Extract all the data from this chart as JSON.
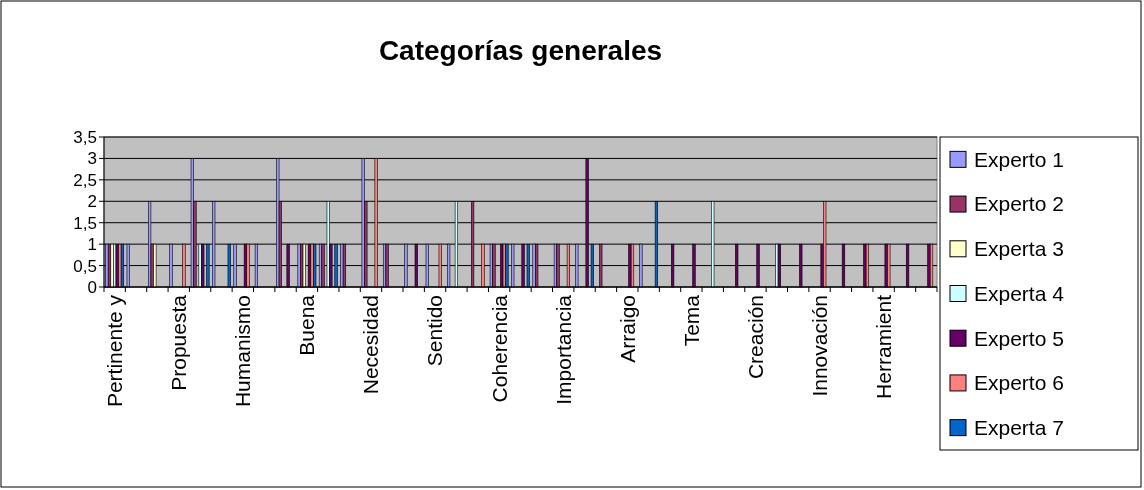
{
  "chart_data": {
    "type": "bar",
    "title": "Categorías generales",
    "categories": [
      "Pertinente y",
      null,
      null,
      "Propuesta",
      null,
      null,
      "Humanismo",
      null,
      null,
      "Buena",
      null,
      null,
      "Necesidad",
      null,
      null,
      "Sentido",
      null,
      null,
      "Coherencia",
      null,
      null,
      "Importancia",
      null,
      null,
      "Arraigo",
      null,
      null,
      "Tema",
      null,
      null,
      "Creación",
      null,
      null,
      "Innovación",
      null,
      null,
      "Herramient",
      null,
      null
    ],
    "series": [
      {
        "name": "Experto 1",
        "color": "#9999ff",
        "values": [
          1,
          1,
          2,
          1,
          3,
          2,
          1,
          1,
          3,
          1,
          1,
          1,
          3,
          1,
          1,
          1,
          1,
          0,
          1,
          1,
          1,
          1,
          1,
          0,
          0,
          1,
          0,
          0,
          0,
          0,
          0,
          0,
          0,
          0,
          0,
          0,
          0,
          0,
          0
        ]
      },
      {
        "name": "Experto 2",
        "color": "#993366",
        "values": [
          1,
          0,
          1,
          0,
          2,
          0,
          0,
          0,
          2,
          1,
          1,
          1,
          2,
          1,
          0,
          0,
          0,
          2,
          1,
          0,
          1,
          1,
          0,
          1,
          0,
          0,
          0,
          0,
          0,
          0,
          0,
          0,
          0,
          0,
          0,
          0,
          0,
          0,
          0
        ]
      },
      {
        "name": "Experta 3",
        "color": "#ffffcc",
        "values": [
          1,
          0,
          1,
          0,
          0,
          0,
          0,
          0,
          0,
          1,
          0,
          0,
          0,
          0,
          0,
          0,
          0,
          0,
          0,
          0,
          0,
          0,
          0,
          0,
          0,
          0,
          0,
          0,
          0,
          0,
          0,
          0,
          0,
          0,
          0,
          0,
          0,
          0,
          0
        ]
      },
      {
        "name": "Experta 4",
        "color": "#ccffff",
        "values": [
          1,
          0,
          0,
          0,
          1,
          0,
          0,
          0,
          0,
          0,
          2,
          0,
          0,
          0,
          0,
          0,
          2,
          0,
          0,
          0,
          0,
          0,
          0,
          0,
          0,
          0,
          0,
          0,
          2,
          0,
          0,
          1,
          0,
          0,
          0,
          0,
          0,
          0,
          0
        ]
      },
      {
        "name": "Experto 5",
        "color": "#660066",
        "values": [
          1,
          0,
          0,
          0,
          1,
          0,
          1,
          0,
          1,
          1,
          1,
          0,
          0,
          0,
          1,
          0,
          0,
          0,
          1,
          1,
          0,
          0,
          3,
          0,
          1,
          0,
          1,
          1,
          0,
          1,
          1,
          1,
          1,
          1,
          1,
          1,
          1,
          1,
          1
        ]
      },
      {
        "name": "Experto 6",
        "color": "#ff8080",
        "values": [
          1,
          0,
          0,
          1,
          0,
          0,
          1,
          0,
          0,
          1,
          0,
          0,
          3,
          0,
          0,
          1,
          0,
          1,
          1,
          0,
          0,
          1,
          0,
          0,
          1,
          0,
          0,
          0,
          0,
          0,
          0,
          0,
          0,
          2,
          0,
          1,
          1,
          0,
          1
        ]
      },
      {
        "name": "Experta 7",
        "color": "#0066cc",
        "values": [
          1,
          0,
          0,
          0,
          1,
          1,
          0,
          0,
          0,
          1,
          1,
          0,
          0,
          0,
          0,
          0,
          0,
          0,
          1,
          1,
          0,
          0,
          1,
          0,
          0,
          2,
          0,
          0,
          0,
          0,
          0,
          0,
          0,
          0,
          0,
          0,
          0,
          0,
          0
        ]
      }
    ],
    "ylim": [
      0,
      3.5
    ],
    "yticks": [
      0,
      {
        "value": 0.5,
        "label": "0,5"
      },
      1,
      {
        "value": 1.5,
        "label": "1,5"
      },
      2,
      {
        "value": 2.5,
        "label": "2,5"
      },
      3,
      {
        "value": 3.5,
        "label": "3,5"
      }
    ],
    "grid": "y",
    "legend": "right"
  }
}
